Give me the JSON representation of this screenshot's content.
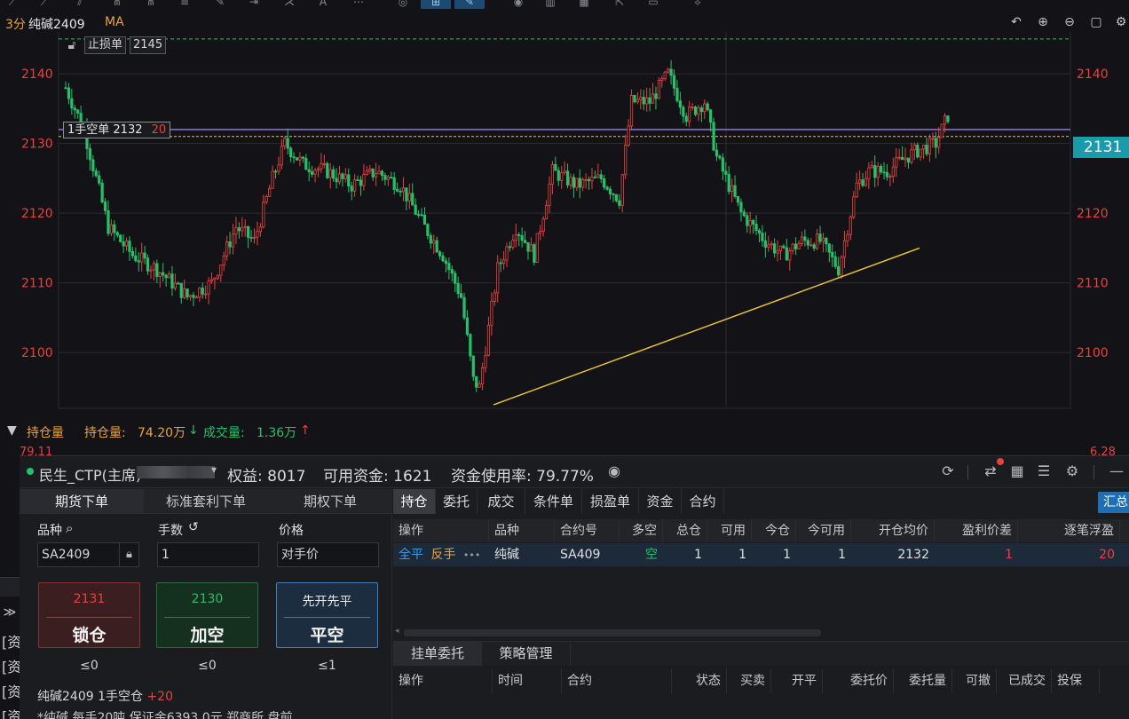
{
  "chart_header": {
    "timeframe": "3分",
    "symbol": "纯碱2409",
    "indicator": "MA"
  },
  "chart_overlay": {
    "stop_loss_label": "止损单",
    "stop_loss_price": "2145",
    "order_tag_text": "1手空单  2132",
    "order_tag_pnl": "20",
    "current_price_tag": "2131"
  },
  "chart_data": {
    "type": "candlestick",
    "y_ticks": [
      "2140",
      "2130",
      "2120",
      "2110",
      "2100"
    ],
    "ylim": [
      2092,
      2146
    ],
    "stop_loss_level": 2145,
    "position_open_level": 2132,
    "last_price": 2131,
    "trendline": [
      [
        0.0,
        2092.5
      ],
      [
        0.8,
        2115
      ]
    ],
    "grid": true
  },
  "volume_header": {
    "toggle_label": "持仓量",
    "oi_label": "持仓量:",
    "oi_value": "74.20万",
    "vol_label": "成交量:",
    "vol_value": "1.36万",
    "left_edge_value": "79.11",
    "right_edge_value": "6.28"
  },
  "account": {
    "broker": "民生_CTP(主席)",
    "equity": "权益: 8017",
    "available": "可用资金: 1621",
    "usage": "资金使用率: 79.77%"
  },
  "order_entry": {
    "tabs": [
      "期货下单",
      "标准套利下单",
      "期权下单"
    ],
    "symbol_label": "品种",
    "qty_label": "手数",
    "price_label": "价格",
    "symbol_value": "SA2409",
    "qty_value": "1",
    "price_value": "对手价",
    "btn_lock": {
      "price": "2131",
      "action": "锁仓",
      "limit": "≤0"
    },
    "btn_add": {
      "price": "2130",
      "action": "加空",
      "limit": "≤0"
    },
    "btn_close": {
      "price": "先开先平",
      "action": "平空",
      "limit": "≤1"
    },
    "info_name": "纯碱2409  1手空仓",
    "info_pnl": "+20",
    "info_desc": "*纯碱 每手20吨 保证金6393.0元 郑商所 盘前"
  },
  "positions": {
    "tabs": [
      "持仓",
      "委托",
      "成交",
      "条件单",
      "损盈单",
      "资金",
      "合约"
    ],
    "summary_button": "汇总",
    "headers": [
      "操作",
      "品种",
      "合约号",
      "多空",
      "总仓",
      "可用",
      "今仓",
      "今可用",
      "开仓均价",
      "盈利价差",
      "逐笔浮盈"
    ],
    "row": {
      "action_close": "全平",
      "action_reverse": "反手",
      "more": "•••",
      "product": "纯碱",
      "contract": "SA409",
      "side": "空",
      "total": "1",
      "available": "1",
      "today": "1",
      "today_available": "1",
      "avg_price": "2132",
      "price_diff": "1",
      "float_pnl": "20"
    },
    "sub_tabs": [
      "挂单委托",
      "策略管理"
    ],
    "sub_headers": [
      "操作",
      "时间",
      "合约",
      "状态",
      "买卖",
      "开平",
      "委托价",
      "委托量",
      "可撤",
      "已成交",
      "投保"
    ]
  },
  "left_stub": {
    "chars": [
      "[资",
      "[资",
      "[资",
      "[资"
    ]
  }
}
